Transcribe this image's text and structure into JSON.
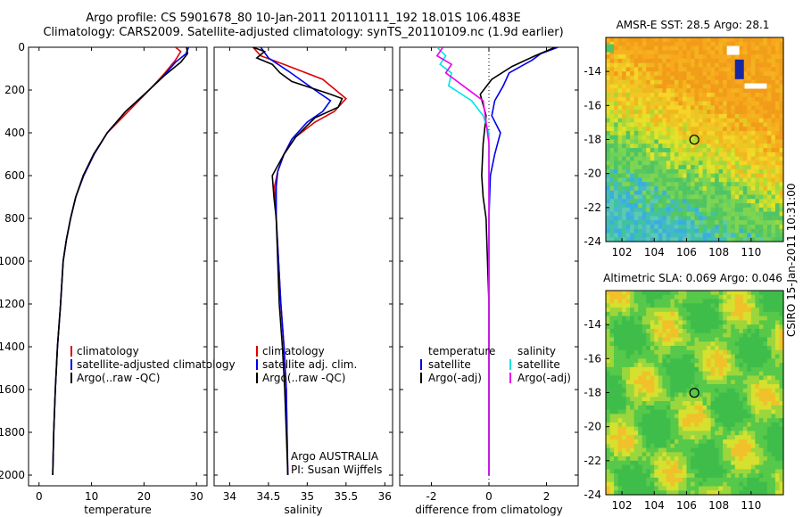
{
  "header": {
    "line1": "Argo profile: CS 5901678_80 10-Jan-2011 20110111_192 18.01S 106.483E",
    "line2": "Climatology: CARS2009. Satellite-adjusted climatology: synTS_20110109.nc (1.9d earlier)"
  },
  "side_label": "CSIRO 15-Jan-2011 10:31:00",
  "colors": {
    "climatology": "#dd0000",
    "satellite": "#0000ee",
    "argo": "#000000",
    "sal_satellite": "#00e5e5",
    "sal_argo": "#ee00ee"
  },
  "chart_data": [
    {
      "type": "line",
      "title": "",
      "xlabel": "temperature",
      "ylabel": "",
      "xlim": [
        -2,
        32
      ],
      "ylim": [
        2050,
        0
      ],
      "xticks": [
        0,
        10,
        20,
        30
      ],
      "yticks": [
        0,
        200,
        400,
        600,
        800,
        1000,
        1200,
        1400,
        1600,
        1800,
        2000
      ],
      "series": [
        {
          "name": "climatology",
          "color": "#dd0000",
          "points": [
            [
              26,
              0
            ],
            [
              27,
              20
            ],
            [
              26,
              60
            ],
            [
              24,
              120
            ],
            [
              21,
              200
            ],
            [
              17,
              300
            ],
            [
              13,
              400
            ],
            [
              10.5,
              500
            ],
            [
              8.5,
              600
            ],
            [
              7,
              700
            ],
            [
              6,
              800
            ],
            [
              5.2,
              900
            ],
            [
              4.6,
              1000
            ],
            [
              4.1,
              1200
            ],
            [
              3.5,
              1400
            ],
            [
              3.1,
              1600
            ],
            [
              2.8,
              1800
            ],
            [
              2.6,
              2000
            ]
          ]
        },
        {
          "name": "satellite-adjusted climatology",
          "color": "#0000ee",
          "points": [
            [
              28.5,
              0
            ],
            [
              28,
              30
            ],
            [
              26,
              70
            ],
            [
              23.5,
              140
            ],
            [
              20.5,
              210
            ],
            [
              16.5,
              300
            ],
            [
              13,
              400
            ],
            [
              10.5,
              500
            ],
            [
              8.5,
              600
            ],
            [
              7,
              700
            ],
            [
              6,
              800
            ],
            [
              5.2,
              900
            ],
            [
              4.6,
              1000
            ],
            [
              4.1,
              1200
            ],
            [
              3.5,
              1400
            ],
            [
              3.1,
              1600
            ],
            [
              2.8,
              1800
            ],
            [
              2.6,
              2000
            ]
          ]
        },
        {
          "name": "Argo(..raw -QC)",
          "color": "#000000",
          "points": [
            [
              28.1,
              0
            ],
            [
              28.3,
              30
            ],
            [
              27,
              70
            ],
            [
              24,
              130
            ],
            [
              20.5,
              210
            ],
            [
              16.5,
              300
            ],
            [
              13,
              400
            ],
            [
              10.4,
              500
            ],
            [
              8.4,
              600
            ],
            [
              7,
              700
            ],
            [
              6,
              800
            ],
            [
              5.2,
              900
            ],
            [
              4.6,
              1000
            ],
            [
              4.1,
              1200
            ],
            [
              3.5,
              1400
            ],
            [
              3.1,
              1600
            ],
            [
              2.8,
              1800
            ],
            [
              2.6,
              2000
            ]
          ]
        }
      ],
      "legend": {
        "position": "lower-right",
        "entries": [
          "climatology",
          "satellite-adjusted climatology",
          "Argo(..raw -QC)"
        ]
      }
    },
    {
      "type": "line",
      "title": "",
      "xlabel": "salinity",
      "ylabel": "",
      "xlim": [
        33.8,
        36.1
      ],
      "ylim": [
        2050,
        0
      ],
      "xticks": [
        34,
        34.5,
        35,
        35.5,
        36
      ],
      "yticks": [
        0,
        200,
        400,
        600,
        800,
        1000,
        1200,
        1400,
        1600,
        1800,
        2000
      ],
      "series": [
        {
          "name": "climatology",
          "color": "#dd0000",
          "points": [
            [
              34.3,
              0
            ],
            [
              34.4,
              40
            ],
            [
              34.7,
              80
            ],
            [
              35.2,
              150
            ],
            [
              35.5,
              240
            ],
            [
              35.35,
              300
            ],
            [
              35.1,
              350
            ],
            [
              34.85,
              420
            ],
            [
              34.7,
              500
            ],
            [
              34.62,
              580
            ],
            [
              34.58,
              650
            ],
            [
              34.6,
              800
            ],
            [
              34.63,
              1000
            ],
            [
              34.66,
              1200
            ],
            [
              34.7,
              1400
            ],
            [
              34.73,
              1600
            ],
            [
              34.74,
              1800
            ],
            [
              34.75,
              2000
            ]
          ]
        },
        {
          "name": "satellite adj. clim.",
          "color": "#0000ee",
          "points": [
            [
              34.4,
              0
            ],
            [
              34.5,
              50
            ],
            [
              34.75,
              110
            ],
            [
              35.1,
              200
            ],
            [
              35.3,
              250
            ],
            [
              35.2,
              300
            ],
            [
              35.0,
              350
            ],
            [
              34.8,
              430
            ],
            [
              34.7,
              500
            ],
            [
              34.62,
              580
            ],
            [
              34.6,
              650
            ],
            [
              34.6,
              800
            ],
            [
              34.63,
              1000
            ],
            [
              34.66,
              1200
            ],
            [
              34.7,
              1400
            ],
            [
              34.73,
              1600
            ],
            [
              34.74,
              1800
            ],
            [
              34.75,
              2000
            ]
          ]
        },
        {
          "name": "Argo(..raw -QC)",
          "color": "#000000",
          "points": [
            [
              34.3,
              0
            ],
            [
              34.45,
              20
            ],
            [
              34.35,
              50
            ],
            [
              34.55,
              80
            ],
            [
              34.65,
              120
            ],
            [
              34.8,
              160
            ],
            [
              35.3,
              220
            ],
            [
              35.45,
              240
            ],
            [
              35.4,
              280
            ],
            [
              35.1,
              330
            ],
            [
              34.85,
              420
            ],
            [
              34.7,
              500
            ],
            [
              34.55,
              600
            ],
            [
              34.57,
              700
            ],
            [
              34.6,
              800
            ],
            [
              34.62,
              1000
            ],
            [
              34.64,
              1200
            ],
            [
              34.68,
              1400
            ],
            [
              34.71,
              1600
            ],
            [
              34.73,
              1800
            ],
            [
              34.75,
              2000
            ]
          ]
        }
      ],
      "legend": {
        "position": "lower-right",
        "entries": [
          "climatology",
          "satellite adj. clim.",
          "Argo(..raw -QC)"
        ]
      },
      "annotations": [
        "Argo AUSTRALIA",
        "PI: Susan Wijffels"
      ]
    },
    {
      "type": "line",
      "title": "",
      "xlabel": "difference from climatology",
      "ylabel": "",
      "xlim": [
        -3.1,
        3.1
      ],
      "ylim": [
        2050,
        0
      ],
      "xticks": [
        -2,
        0,
        2
      ],
      "yticks": [
        0,
        200,
        400,
        600,
        800,
        1000,
        1200,
        1400,
        1600,
        1800,
        2000
      ],
      "series": [
        {
          "name": "temperature satellite",
          "color": "#0000ee",
          "points": [
            [
              2.4,
              0
            ],
            [
              1.8,
              30
            ],
            [
              1.5,
              60
            ],
            [
              0.7,
              120
            ],
            [
              0.5,
              180
            ],
            [
              0.2,
              250
            ],
            [
              0.1,
              320
            ],
            [
              0.4,
              400
            ],
            [
              0.2,
              500
            ],
            [
              0.05,
              600
            ],
            [
              0,
              800
            ],
            [
              0,
              1000
            ],
            [
              0,
              1200
            ],
            [
              0,
              1400
            ],
            [
              0,
              1600
            ],
            [
              0,
              1800
            ],
            [
              0,
              2000
            ]
          ]
        },
        {
          "name": "temperature Argo(-adj)",
          "color": "#000000",
          "points": [
            [
              2.3,
              0
            ],
            [
              1.6,
              40
            ],
            [
              0.8,
              90
            ],
            [
              0.1,
              150
            ],
            [
              -0.3,
              220
            ],
            [
              -0.1,
              320
            ],
            [
              -0.2,
              450
            ],
            [
              -0.25,
              600
            ],
            [
              -0.2,
              700
            ],
            [
              -0.1,
              800
            ],
            [
              -0.05,
              1000
            ],
            [
              0,
              1200
            ],
            [
              0,
              1400
            ],
            [
              0,
              1600
            ],
            [
              0,
              1800
            ],
            [
              0,
              2000
            ]
          ]
        },
        {
          "name": "salinity satellite",
          "color": "#00e5e5",
          "points": [
            [
              -1.8,
              0
            ],
            [
              -1.5,
              40
            ],
            [
              -1.7,
              80
            ],
            [
              -1.3,
              120
            ],
            [
              -1.4,
              180
            ],
            [
              -0.6,
              250
            ],
            [
              -0.2,
              320
            ],
            [
              0,
              400
            ],
            [
              0,
              500
            ],
            [
              0,
              700
            ],
            [
              0,
              900
            ],
            [
              0,
              1200
            ],
            [
              0,
              1500
            ],
            [
              0,
              1800
            ],
            [
              0,
              2000
            ]
          ]
        },
        {
          "name": "salinity Argo(-adj)",
          "color": "#ee00ee",
          "points": [
            [
              -1.6,
              0
            ],
            [
              -1.8,
              40
            ],
            [
              -1.3,
              80
            ],
            [
              -1.5,
              120
            ],
            [
              -0.9,
              180
            ],
            [
              -0.2,
              250
            ],
            [
              -0.1,
              350
            ],
            [
              0,
              450
            ],
            [
              0,
              600
            ],
            [
              0,
              800
            ],
            [
              0,
              1000
            ],
            [
              0,
              1300
            ],
            [
              0,
              1600
            ],
            [
              0,
              1900
            ],
            [
              0,
              2000
            ]
          ]
        }
      ],
      "legend": {
        "position": "lower-right",
        "groups": [
          {
            "title": "temperature",
            "entries": [
              "satellite",
              "Argo(-adj)"
            ]
          },
          {
            "title": "salinity",
            "entries": [
              "satellite",
              "Argo(-adj)"
            ]
          }
        ]
      }
    },
    {
      "type": "heatmap",
      "title": "AMSR-E SST: 28.5 Argo: 28.1",
      "xlim": [
        101,
        112
      ],
      "ylim": [
        -24,
        -12
      ],
      "xticks": [
        102,
        104,
        106,
        108,
        110
      ],
      "yticks": [
        -24,
        -22,
        -20,
        -18,
        -16,
        -14
      ],
      "marker": {
        "lon": 106.483,
        "lat": -18.01,
        "shape": "circle"
      }
    },
    {
      "type": "heatmap",
      "title": "Altimetric SLA: 0.069 Argo: 0.046",
      "xlim": [
        101,
        112
      ],
      "ylim": [
        -24,
        -12
      ],
      "xticks": [
        102,
        104,
        106,
        108,
        110
      ],
      "yticks": [
        -24,
        -22,
        -20,
        -18,
        -16,
        -14
      ],
      "marker": {
        "lon": 106.483,
        "lat": -18.01,
        "shape": "circle"
      }
    }
  ]
}
